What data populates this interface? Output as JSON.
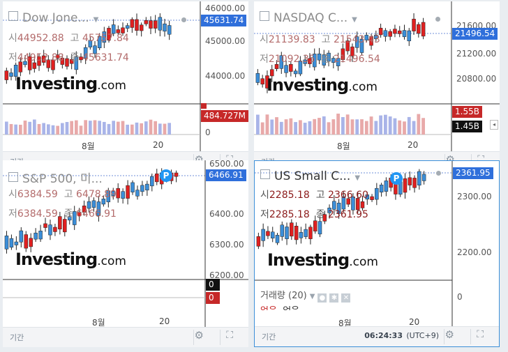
{
  "common": {
    "period_label": "기간",
    "logo_big": "Investing",
    "logo_small": ".com",
    "month_label": "8월",
    "day_label": "20",
    "up_color": "#3b8ed8",
    "down_color": "#e02020",
    "gear_icon": "gear-icon",
    "expand_icon": "expand-icon",
    "open_label": "시",
    "high_label": "고",
    "low_label": "저",
    "close_label": "종"
  },
  "panels": [
    {
      "id": "dow",
      "title": "Dow Jone...",
      "open": "44952.88",
      "high": "45757.84",
      "low": "44952.88",
      "close": "45631.74",
      "price_tag": "45631.74",
      "price_tag_color": "#2f6fdb",
      "axis": [
        "46000.00",
        "45000.00",
        "44000.00"
      ],
      "vol_tag_top": "485.???M",
      "vol_tag": "484.727M",
      "vol_tag_color": "#c62828",
      "vol_axis": "0"
    },
    {
      "id": "nasdaq",
      "title": "NASDAQ C...",
      "open": "21139.83",
      "high": "21543.43",
      "low": "21092.35",
      "close": "21496.54",
      "price_tag": "21496.54",
      "price_tag_color": "#2f6fdb",
      "axis": [
        "21600.00",
        "21200.00",
        "20800.00"
      ],
      "vol_tag": "1.55B",
      "vol_tag_color": "#c62828",
      "vol_tag2": "1.45B",
      "vol_tag2_color": "#111111"
    },
    {
      "id": "sp500",
      "title": "S&P 500, 미...",
      "open": "6384.59",
      "high": "6478.89",
      "low": "6384.59",
      "close": "6466.91",
      "price_tag": "6466.91",
      "price_tag_color": "#2f6fdb",
      "axis": [
        "6500.00",
        "6400.00",
        "6300.00",
        "6200.00"
      ],
      "vol_tag": "0",
      "vol_tag_color": "#c62828",
      "vol_tag_top": "0"
    },
    {
      "id": "russell",
      "title": "US Small C...",
      "open": "2285.18",
      "high": "2366.60",
      "low": "2285.18",
      "close": "2361.95",
      "price_tag": "2361.95",
      "price_tag_color": "#2f6fdb",
      "axis": [
        "2300.00",
        "2200.00"
      ],
      "volume_legend": "거래량 (20)",
      "volume_values": [
        "없음",
        "없음"
      ],
      "vol_axis": "0",
      "time": "06:24:33",
      "timezone": "(UTC+9)"
    }
  ]
}
